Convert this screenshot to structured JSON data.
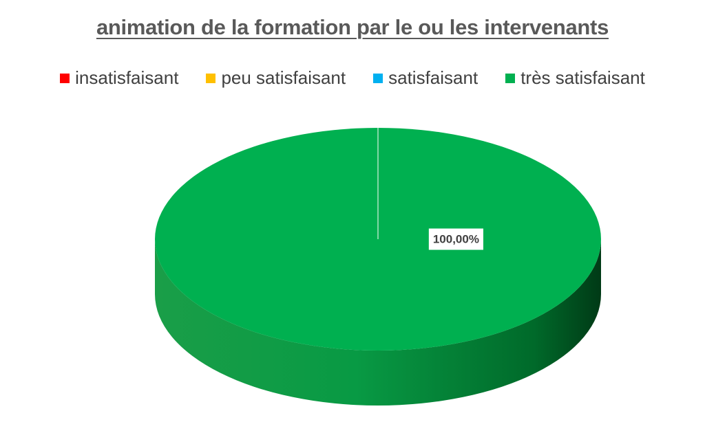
{
  "chart_data": {
    "type": "pie",
    "title": "animation de la formation par le ou les intervenants",
    "categories": [
      "insatisfaisant",
      "peu satisfaisant",
      "satisfaisant",
      "très satisfaisant"
    ],
    "values": [
      0,
      0,
      0,
      100
    ],
    "colors": [
      "#ff0000",
      "#ffc000",
      "#00b0f0",
      "#00b050"
    ],
    "data_labels": [
      "",
      "",
      "",
      "100,00%"
    ],
    "legend_position": "top",
    "style": "3d"
  }
}
